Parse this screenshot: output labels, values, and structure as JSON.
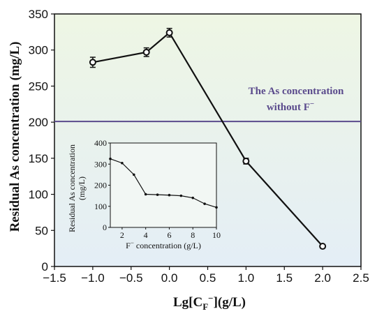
{
  "chart_data": [
    {
      "type": "line",
      "xlabel_main": "Lg[C",
      "xlabel_sub": "F",
      "xlabel_sup": "−",
      "xlabel_tail": "](g/L)",
      "ylabel": "Residual As concentration (mg/L)",
      "xlim": [
        -1.5,
        2.5
      ],
      "ylim": [
        0,
        350
      ],
      "xticks": [
        "−1.5",
        "−1.0",
        "−0.5",
        "0.0",
        "0.5",
        "1.0",
        "1.5",
        "2.0",
        "2.5"
      ],
      "yticks": [
        "0",
        "50",
        "100",
        "150",
        "200",
        "250",
        "300",
        "350"
      ],
      "x": [
        -1.0,
        -0.3,
        0.0,
        1.0,
        2.0
      ],
      "y": [
        283,
        297,
        324,
        146,
        28
      ],
      "yerr": [
        7,
        6,
        6,
        4,
        2
      ],
      "reference_line": {
        "value": 201,
        "label_line1": "The As concentration",
        "label_line2": "without F",
        "label_sup": "−",
        "color": "#5a4a8c"
      },
      "background_gradient": [
        "#eef6e4",
        "#e4eef6"
      ]
    },
    {
      "type": "line",
      "xlabel_main": "F",
      "xlabel_sup": "−",
      "xlabel_tail": " concentration (g/L)",
      "ylabel_line1": "Residual As concentration",
      "ylabel_line2": "(mg/L)",
      "xlim": [
        1,
        10
      ],
      "ylim": [
        0,
        400
      ],
      "xticks": [
        "2",
        "4",
        "6",
        "8",
        "10"
      ],
      "yticks": [
        "0",
        "100",
        "200",
        "300",
        "400"
      ],
      "x": [
        1,
        2,
        3,
        4,
        5,
        6,
        7,
        8,
        9,
        10
      ],
      "y": [
        325,
        305,
        250,
        157,
        155,
        153,
        150,
        140,
        112,
        95
      ]
    }
  ]
}
